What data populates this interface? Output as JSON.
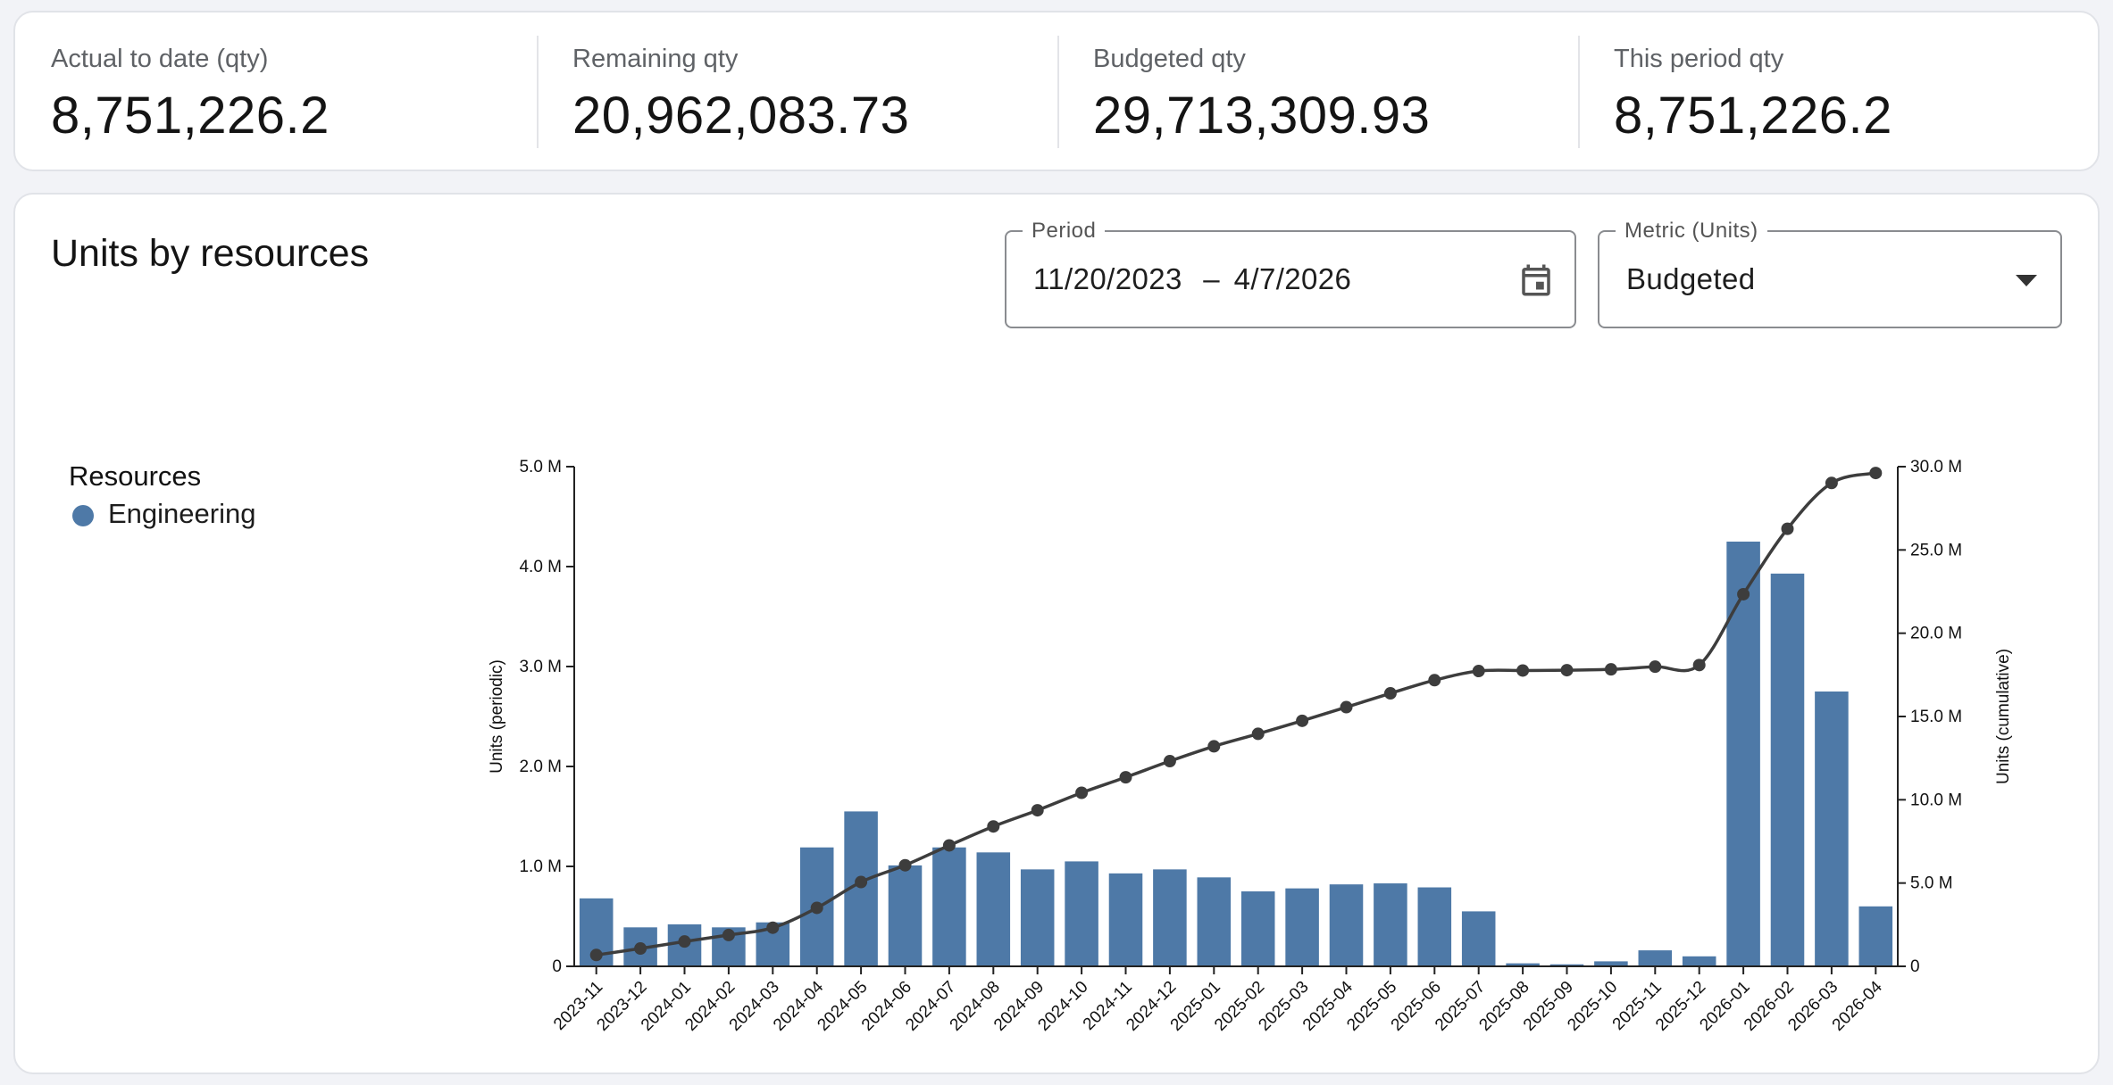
{
  "kpis": [
    {
      "label": "Actual to date (qty)",
      "value": "8,751,226.2"
    },
    {
      "label": "Remaining qty",
      "value": "20,962,083.73"
    },
    {
      "label": "Budgeted qty",
      "value": "29,713,309.93"
    },
    {
      "label": "This period qty",
      "value": "8,751,226.2"
    }
  ],
  "chart_card": {
    "title": "Units by resources",
    "period": {
      "label": "Period",
      "start": "11/20/2023",
      "separator": "–",
      "end": "4/7/2026",
      "icon": "calendar-icon"
    },
    "metric": {
      "label": "Metric (Units)",
      "value": "Budgeted",
      "icon": "caret-down-icon"
    },
    "legend": {
      "title": "Resources",
      "items": [
        {
          "name": "Engineering",
          "color": "#4e79a7"
        }
      ]
    }
  },
  "chart_data": {
    "type": "bar",
    "categories": [
      "2023-11",
      "2023-12",
      "2024-01",
      "2024-02",
      "2024-03",
      "2024-04",
      "2024-05",
      "2024-06",
      "2024-07",
      "2024-08",
      "2024-09",
      "2024-10",
      "2024-11",
      "2024-12",
      "2025-01",
      "2025-02",
      "2025-03",
      "2025-04",
      "2025-05",
      "2025-06",
      "2025-07",
      "2025-08",
      "2025-09",
      "2025-10",
      "2025-11",
      "2025-12",
      "2026-01",
      "2026-02",
      "2026-03",
      "2026-04"
    ],
    "series": [
      {
        "name": "Engineering",
        "type": "bar",
        "axis": "left",
        "color": "#4e79a7",
        "values": [
          0.68,
          0.39,
          0.42,
          0.39,
          0.44,
          1.19,
          1.55,
          1.01,
          1.19,
          1.14,
          0.97,
          1.05,
          0.93,
          0.97,
          0.89,
          0.75,
          0.78,
          0.82,
          0.83,
          0.79,
          0.55,
          0.03,
          0.02,
          0.05,
          0.16,
          0.1,
          4.25,
          3.93,
          2.75,
          0.6
        ]
      },
      {
        "type": "line",
        "axis": "right",
        "color": "#3d3d3d",
        "values": [
          0.68,
          1.07,
          1.49,
          1.88,
          2.32,
          3.51,
          5.06,
          6.07,
          7.26,
          8.4,
          9.37,
          10.42,
          11.35,
          12.32,
          13.21,
          13.96,
          14.74,
          15.56,
          16.39,
          17.18,
          17.73,
          17.76,
          17.78,
          17.83,
          17.99,
          18.09,
          22.34,
          26.27,
          29.02,
          29.62
        ]
      }
    ],
    "y_left": {
      "label": "Units (periodic)",
      "ylim": [
        0,
        5
      ],
      "ticks": [
        0,
        1,
        2,
        3,
        4,
        5
      ],
      "tick_labels": [
        "0",
        "1.0 M",
        "2.0 M",
        "3.0 M",
        "4.0 M",
        "5.0 M"
      ]
    },
    "y_right": {
      "label": "Units (cumulative)",
      "ylim": [
        0,
        30
      ],
      "ticks": [
        0,
        5,
        10,
        15,
        20,
        25,
        30
      ],
      "tick_labels": [
        "0",
        "5.0 M",
        "10.0 M",
        "15.0 M",
        "20.0 M",
        "25.0 M",
        "30.0 M"
      ]
    },
    "units": "M",
    "grid": false,
    "legend_position": "left"
  }
}
